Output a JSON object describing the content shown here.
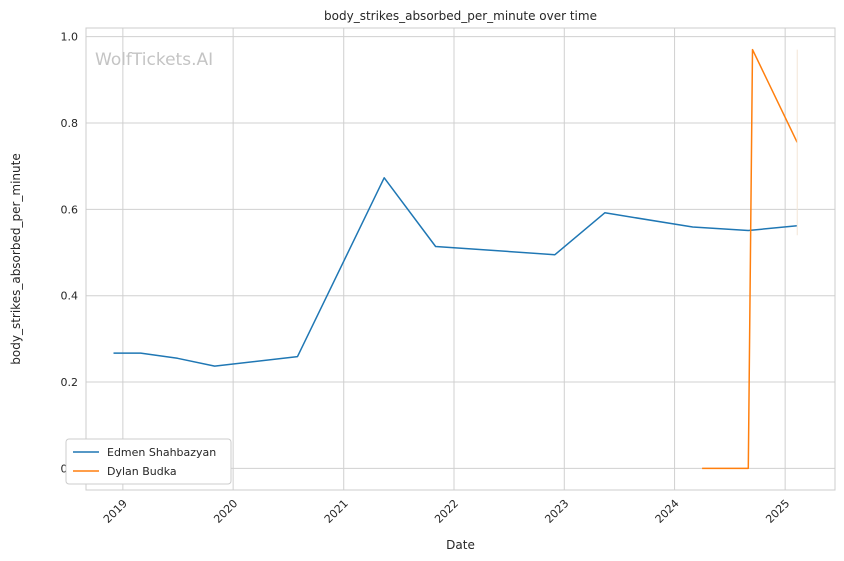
{
  "chart_data": {
    "type": "line",
    "title": "body_strikes_absorbed_per_minute over time",
    "xlabel": "Date",
    "ylabel": "body_strikes_absorbed_per_minute",
    "watermark": "WolfTickets.AI",
    "xlim": [
      "2018-09-01",
      "2025-06-15"
    ],
    "ylim": [
      -0.05,
      1.02
    ],
    "x_ticks": [
      "2019",
      "2020",
      "2021",
      "2022",
      "2023",
      "2024",
      "2025"
    ],
    "y_ticks": [
      "0.0",
      "0.2",
      "0.4",
      "0.6",
      "0.8",
      "1.0"
    ],
    "grid": true,
    "legend_position": "lower-left",
    "series": [
      {
        "name": "Edmen Shahbazyan",
        "color": "#1f77b4",
        "x": [
          "2018-12-01",
          "2019-03-01",
          "2019-07-01",
          "2019-11-01",
          "2020-08-01",
          "2021-05-15",
          "2021-11-01",
          "2022-12-01",
          "2023-05-15",
          "2024-03-01",
          "2024-09-01",
          "2025-02-10"
        ],
        "y": [
          0.267,
          0.267,
          0.255,
          0.237,
          0.259,
          0.673,
          0.514,
          0.495,
          0.592,
          0.559,
          0.551,
          0.562
        ]
      },
      {
        "name": "Dylan Budka",
        "color": "#ff7f0e",
        "x": [
          "2024-04-01",
          "2024-09-01",
          "2024-09-15",
          "2025-02-10"
        ],
        "y": [
          0.0,
          0.0,
          0.97,
          0.755
        ]
      }
    ]
  }
}
